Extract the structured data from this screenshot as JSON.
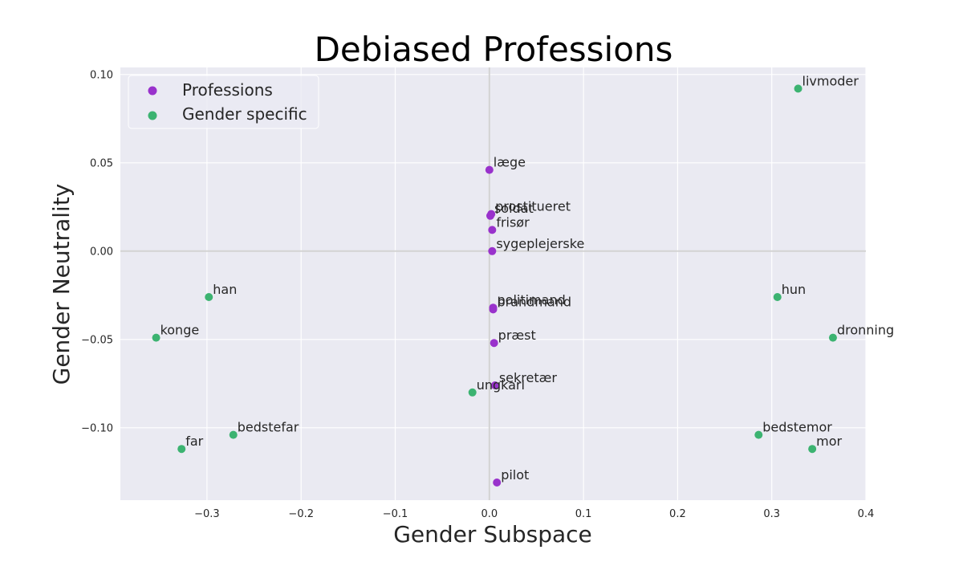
{
  "chart_data": {
    "type": "scatter",
    "title": "Debiased Professions",
    "xlabel": "Gender Subspace",
    "ylabel": "Gender Neutrality",
    "xlim": [
      -0.392,
      0.4
    ],
    "ylim": [
      -0.141,
      0.104
    ],
    "xticks": [
      -0.3,
      -0.2,
      -0.1,
      0.0,
      0.1,
      0.2,
      0.3,
      0.4
    ],
    "xtick_labels": [
      "−0.3",
      "−0.2",
      "−0.1",
      "0.0",
      "0.1",
      "0.2",
      "0.3",
      "0.4"
    ],
    "yticks": [
      -0.1,
      -0.05,
      0.0,
      0.05,
      0.1
    ],
    "ytick_labels": [
      "−0.10",
      "−0.05",
      "0.00",
      "0.05",
      "0.10"
    ],
    "grid": true,
    "legend_position": "top-left",
    "series": [
      {
        "name": "Professions",
        "color": "#9932CC",
        "points": [
          {
            "label": "læge",
            "x": 0.0,
            "y": 0.046
          },
          {
            "label": "prostitueret",
            "x": 0.002,
            "y": 0.021
          },
          {
            "label": "soldat",
            "x": 0.001,
            "y": 0.02
          },
          {
            "label": "frisør",
            "x": 0.003,
            "y": 0.012
          },
          {
            "label": "sygeplejerske",
            "x": 0.003,
            "y": 0.0
          },
          {
            "label": "politimand",
            "x": 0.004,
            "y": -0.032
          },
          {
            "label": "brandmand",
            "x": 0.004,
            "y": -0.033
          },
          {
            "label": "præst",
            "x": 0.005,
            "y": -0.052
          },
          {
            "label": "sekretær",
            "x": 0.006,
            "y": -0.076
          },
          {
            "label": "pilot",
            "x": 0.008,
            "y": -0.131
          }
        ]
      },
      {
        "name": "Gender specific",
        "color": "#3CB371",
        "points": [
          {
            "label": "livmoder",
            "x": 0.328,
            "y": 0.092
          },
          {
            "label": "han",
            "x": -0.298,
            "y": -0.026
          },
          {
            "label": "hun",
            "x": 0.306,
            "y": -0.026
          },
          {
            "label": "konge",
            "x": -0.354,
            "y": -0.049
          },
          {
            "label": "dronning",
            "x": 0.365,
            "y": -0.049
          },
          {
            "label": "ungkarl",
            "x": -0.018,
            "y": -0.08
          },
          {
            "label": "bedstefar",
            "x": -0.272,
            "y": -0.104
          },
          {
            "label": "far",
            "x": -0.327,
            "y": -0.112
          },
          {
            "label": "bedstemor",
            "x": 0.286,
            "y": -0.104
          },
          {
            "label": "mor",
            "x": 0.343,
            "y": -0.112
          }
        ]
      }
    ]
  }
}
